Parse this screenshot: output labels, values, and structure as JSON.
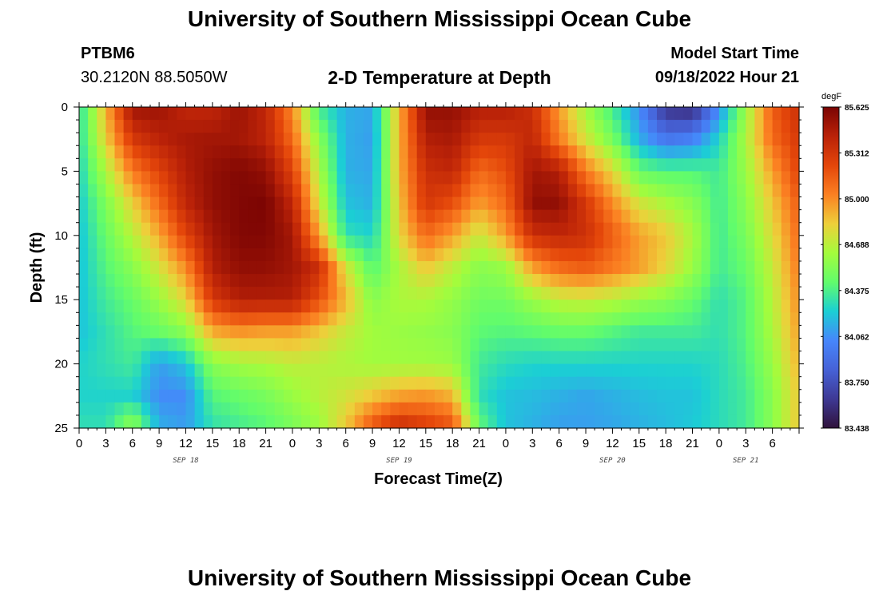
{
  "header": {
    "title": "University of Southern Mississippi Ocean Cube",
    "station_id": "PTBM6",
    "station_coords": "30.2120N  88.5050W",
    "plot_title": "2-D Temperature at Depth",
    "model_start_label": "Model Start Time",
    "model_start_value": "09/18/2022 Hour 21"
  },
  "footer": {
    "title": "University of Southern Mississippi Ocean Cube"
  },
  "colors": {
    "colormap": [
      "#30123b",
      "#3e3994",
      "#4662d7",
      "#4686fb",
      "#1bcfd4",
      "#61fc6c",
      "#a4fc3c",
      "#eecf3a",
      "#fb8022",
      "#e4460a",
      "#ba2208",
      "#7a0403"
    ]
  },
  "chart_data": {
    "type": "heatmap",
    "title": "2-D Temperature at Depth",
    "xlabel": "Forecast Time(Z)",
    "ylabel": "Depth (ft)",
    "x_hours_range": [
      0,
      81
    ],
    "y_range": [
      0,
      25
    ],
    "x_ticks": [
      {
        "hour": 0,
        "label": "0"
      },
      {
        "hour": 3,
        "label": "3"
      },
      {
        "hour": 6,
        "label": "6"
      },
      {
        "hour": 9,
        "label": "9"
      },
      {
        "hour": 12,
        "label": "12"
      },
      {
        "hour": 15,
        "label": "15"
      },
      {
        "hour": 18,
        "label": "18"
      },
      {
        "hour": 21,
        "label": "21"
      },
      {
        "hour": 24,
        "label": "0"
      },
      {
        "hour": 27,
        "label": "3"
      },
      {
        "hour": 30,
        "label": "6"
      },
      {
        "hour": 33,
        "label": "9"
      },
      {
        "hour": 36,
        "label": "12"
      },
      {
        "hour": 39,
        "label": "15"
      },
      {
        "hour": 42,
        "label": "18"
      },
      {
        "hour": 45,
        "label": "21"
      },
      {
        "hour": 48,
        "label": "0"
      },
      {
        "hour": 51,
        "label": "3"
      },
      {
        "hour": 54,
        "label": "6"
      },
      {
        "hour": 57,
        "label": "9"
      },
      {
        "hour": 60,
        "label": "12"
      },
      {
        "hour": 63,
        "label": "15"
      },
      {
        "hour": 66,
        "label": "18"
      },
      {
        "hour": 69,
        "label": "21"
      },
      {
        "hour": 72,
        "label": "0"
      },
      {
        "hour": 75,
        "label": "3"
      },
      {
        "hour": 78,
        "label": "6"
      }
    ],
    "date_labels": [
      {
        "hour": 12,
        "label": "SEP 18"
      },
      {
        "hour": 36,
        "label": "SEP 19"
      },
      {
        "hour": 60,
        "label": "SEP 20"
      },
      {
        "hour": 75,
        "label": "SEP 21"
      }
    ],
    "y_ticks": [
      0,
      5,
      10,
      15,
      20,
      25
    ],
    "colorbar": {
      "unit": "degF",
      "min": 83.438,
      "max": 85.625,
      "ticks": [
        "85.625",
        "85.312",
        "85.000",
        "84.688",
        "84.375",
        "84.062",
        "83.750",
        "83.438"
      ]
    },
    "depth_levels_ft": [
      0,
      2.5,
      5,
      7.5,
      10,
      12.5,
      15,
      17.5,
      20,
      22.5,
      25
    ],
    "time_hours": [
      0,
      3,
      6,
      9,
      12,
      15,
      18,
      21,
      24,
      27,
      30,
      33,
      36,
      39,
      42,
      45,
      48,
      51,
      54,
      57,
      60,
      63,
      66,
      69,
      72,
      75,
      78,
      81
    ],
    "temperature_degF": [
      [
        84.28,
        84.9,
        85.52,
        85.52,
        85.4,
        85.4,
        85.52,
        85.4,
        85.0,
        84.35,
        84.15,
        84.12,
        84.9,
        85.55,
        85.55,
        85.45,
        85.45,
        85.35,
        84.95,
        84.62,
        84.35,
        84.05,
        83.6,
        83.55,
        84.05,
        84.6,
        85.15,
        85.35
      ],
      [
        84.28,
        84.82,
        85.3,
        85.42,
        85.48,
        85.5,
        85.5,
        85.42,
        85.1,
        84.55,
        84.15,
        84.1,
        84.9,
        85.45,
        85.48,
        85.3,
        85.3,
        85.4,
        85.05,
        84.75,
        84.5,
        84.15,
        83.95,
        84.0,
        84.25,
        84.65,
        85.1,
        85.3
      ],
      [
        84.25,
        84.65,
        85.05,
        85.25,
        85.45,
        85.55,
        85.6,
        85.55,
        85.25,
        84.65,
        84.15,
        84.12,
        84.9,
        85.35,
        85.4,
        85.1,
        85.2,
        85.5,
        85.45,
        85.05,
        84.8,
        84.45,
        84.4,
        84.4,
        84.35,
        84.6,
        84.95,
        85.25
      ],
      [
        84.22,
        84.52,
        84.82,
        85.1,
        85.4,
        85.55,
        85.6,
        85.62,
        85.4,
        84.75,
        84.2,
        84.15,
        84.85,
        85.3,
        85.2,
        84.95,
        85.1,
        85.55,
        85.55,
        85.3,
        85.0,
        84.75,
        84.65,
        84.55,
        84.35,
        84.55,
        84.85,
        85.15
      ],
      [
        84.2,
        84.45,
        84.68,
        84.92,
        85.25,
        85.5,
        85.6,
        85.6,
        85.5,
        84.95,
        84.3,
        84.25,
        84.8,
        85.1,
        84.95,
        84.72,
        84.95,
        85.35,
        85.4,
        85.35,
        85.15,
        84.95,
        84.85,
        84.65,
        84.35,
        84.5,
        84.78,
        85.1
      ],
      [
        84.2,
        84.4,
        84.55,
        84.75,
        85.0,
        85.45,
        85.55,
        85.55,
        85.5,
        85.35,
        84.75,
        84.4,
        84.65,
        84.85,
        84.7,
        84.55,
        84.6,
        84.95,
        85.1,
        85.15,
        85.05,
        84.95,
        84.8,
        84.6,
        84.35,
        84.45,
        84.72,
        85.05
      ],
      [
        84.2,
        84.35,
        84.45,
        84.6,
        84.8,
        85.3,
        85.45,
        85.45,
        85.45,
        85.2,
        84.9,
        84.55,
        84.65,
        84.65,
        84.58,
        84.48,
        84.48,
        84.6,
        84.7,
        84.72,
        84.68,
        84.6,
        84.55,
        84.45,
        84.3,
        84.4,
        84.68,
        85.0
      ],
      [
        84.2,
        84.3,
        84.4,
        84.45,
        84.55,
        84.92,
        84.98,
        84.95,
        84.95,
        84.85,
        84.72,
        84.62,
        84.6,
        84.58,
        84.55,
        84.42,
        84.4,
        84.42,
        84.45,
        84.45,
        84.4,
        84.35,
        84.35,
        84.35,
        84.3,
        84.4,
        84.65,
        84.95
      ],
      [
        84.25,
        84.3,
        84.35,
        84.1,
        84.2,
        84.55,
        84.62,
        84.65,
        84.7,
        84.68,
        84.65,
        84.62,
        84.62,
        84.62,
        84.6,
        84.35,
        84.28,
        84.25,
        84.25,
        84.25,
        84.25,
        84.25,
        84.25,
        84.25,
        84.28,
        84.38,
        84.6,
        84.9
      ],
      [
        84.25,
        84.25,
        84.25,
        84.05,
        84.05,
        84.4,
        84.45,
        84.5,
        84.6,
        84.68,
        84.75,
        84.85,
        84.95,
        84.98,
        84.9,
        84.3,
        84.2,
        84.18,
        84.15,
        84.12,
        84.15,
        84.18,
        84.2,
        84.2,
        84.28,
        84.35,
        84.55,
        84.85
      ],
      [
        84.3,
        84.3,
        84.6,
        84.15,
        84.1,
        84.3,
        84.35,
        84.4,
        84.5,
        84.6,
        84.85,
        85.2,
        85.4,
        85.3,
        85.2,
        84.45,
        84.2,
        84.15,
        84.1,
        84.1,
        84.12,
        84.15,
        84.18,
        84.22,
        84.28,
        84.35,
        84.55,
        84.85
      ]
    ]
  }
}
